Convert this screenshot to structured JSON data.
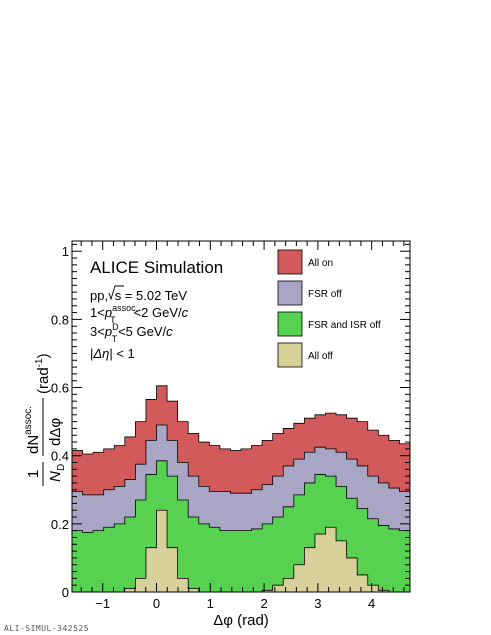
{
  "footer_text": "ALI-SIMUL-342525",
  "chart_data": {
    "type": "area",
    "title": "ALICE Simulation",
    "annotations": {
      "system": "pp, ",
      "sqrt_s": "s",
      "energy": " = 5.02 TeV",
      "assoc_lo": "1<",
      "assoc_p": "p",
      "assoc_sup": "assoc.",
      "assoc_sub": "T",
      "assoc_hi": "<2 GeV/",
      "c": "c",
      "trig_lo": "3<",
      "trig_p": "p",
      "trig_sup": "D",
      "trig_sub": "T",
      "trig_hi": "<5 GeV/",
      "deta_bar1": "|",
      "deta_sym": "Δη",
      "deta_bar2": "|",
      "deta_val": " < 1"
    },
    "xlabel": "Δφ (rad)",
    "ylabel": {
      "one": "1",
      "N": "N",
      "N_sub": "D",
      "dN": "dN",
      "dN_sup": "assoc.",
      "ddphi": "dΔφ",
      "unit": "(rad",
      "unit_sup": "-1",
      "unit_close": ")"
    },
    "xlim": [
      -1.5708,
      4.7124
    ],
    "ylim": [
      0,
      1.03
    ],
    "x_ticks": [
      -1,
      0,
      1,
      2,
      3,
      4
    ],
    "x_tick_labels": [
      "−1",
      "0",
      "1",
      "2",
      "3",
      "4"
    ],
    "y_ticks": [
      0,
      0.2,
      0.4,
      0.6,
      0.8,
      1
    ],
    "y_tick_labels": [
      "0",
      "0.2",
      "0.4",
      "0.6",
      "0.8",
      "1"
    ],
    "legend_position": "top-right",
    "n_bins": 32,
    "series": [
      {
        "name": "All on",
        "color": "#d25a5a",
        "values": [
          0.415,
          0.405,
          0.41,
          0.42,
          0.43,
          0.455,
          0.5,
          0.565,
          0.605,
          0.56,
          0.5,
          0.465,
          0.44,
          0.43,
          0.42,
          0.415,
          0.42,
          0.43,
          0.445,
          0.465,
          0.48,
          0.495,
          0.51,
          0.52,
          0.525,
          0.52,
          0.51,
          0.5,
          0.475,
          0.46,
          0.445,
          0.435
        ]
      },
      {
        "name": "FSR off",
        "color": "#a9a6c5",
        "values": [
          0.295,
          0.285,
          0.285,
          0.3,
          0.31,
          0.33,
          0.375,
          0.445,
          0.49,
          0.445,
          0.38,
          0.34,
          0.31,
          0.295,
          0.295,
          0.29,
          0.29,
          0.3,
          0.315,
          0.34,
          0.37,
          0.39,
          0.41,
          0.425,
          0.42,
          0.41,
          0.39,
          0.37,
          0.34,
          0.32,
          0.305,
          0.295
        ]
      },
      {
        "name": "FSR and ISR off",
        "color": "#56d250",
        "values": [
          0.18,
          0.175,
          0.18,
          0.19,
          0.2,
          0.22,
          0.27,
          0.345,
          0.385,
          0.34,
          0.27,
          0.22,
          0.2,
          0.19,
          0.18,
          0.18,
          0.18,
          0.185,
          0.2,
          0.22,
          0.25,
          0.285,
          0.32,
          0.345,
          0.34,
          0.31,
          0.275,
          0.245,
          0.215,
          0.195,
          0.185,
          0.18
        ]
      },
      {
        "name": "All off",
        "color": "#d7d09b",
        "values": [
          0,
          0,
          0,
          0,
          0,
          0.01,
          0.04,
          0.13,
          0.24,
          0.13,
          0.04,
          0.01,
          0,
          0,
          0,
          0,
          0,
          0,
          0.005,
          0.02,
          0.04,
          0.08,
          0.13,
          0.17,
          0.19,
          0.15,
          0.1,
          0.05,
          0.02,
          0.005,
          0,
          0
        ]
      }
    ]
  }
}
